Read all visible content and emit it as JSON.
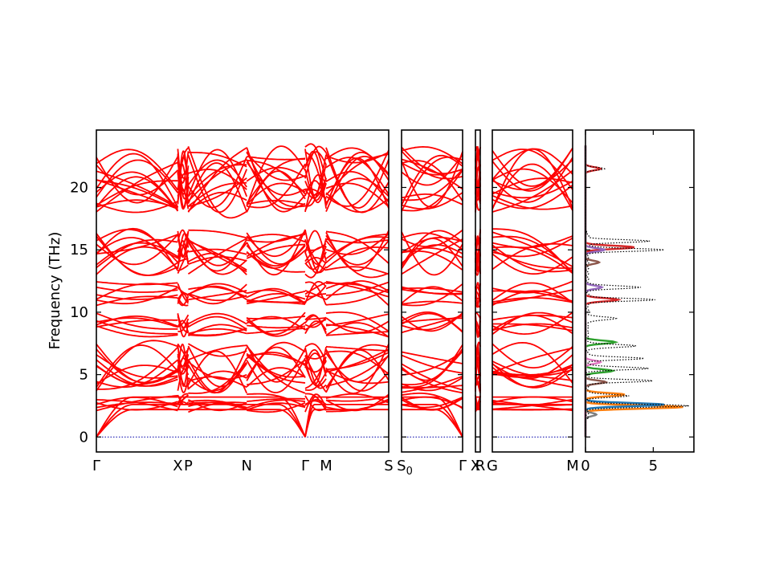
{
  "chart_data": {
    "type": "line",
    "ylabel": "Frequency (THz)",
    "ylim": [
      -1.2,
      24.6
    ],
    "yticks": [
      0,
      5,
      10,
      15,
      20
    ],
    "band_panels": [
      {
        "name": "panel-1",
        "labels": [
          "Γ",
          "X",
          "P",
          "N",
          "Γ",
          "M",
          "S"
        ],
        "label_pos": [
          0,
          0.39,
          0.44,
          0.72,
          1.0,
          1.1,
          1.4
        ]
      },
      {
        "name": "panel-2",
        "labels": [
          "S0",
          "Γ"
        ],
        "label_pos": [
          0,
          1
        ]
      },
      {
        "name": "panel-3",
        "labels": [
          "X",
          "R"
        ],
        "label_pos": [
          0,
          1
        ]
      },
      {
        "name": "panel-4",
        "labels": [
          "G",
          "M"
        ],
        "label_pos": [
          0,
          1
        ]
      }
    ],
    "band_summary": {
      "acoustic_max": [
        2.2,
        2.6,
        3.2
      ],
      "optical_groups": [
        [
          2.0,
          3.5
        ],
        [
          3.5,
          7.5
        ],
        [
          8.0,
          10.0
        ],
        [
          10.5,
          12.5
        ],
        [
          13.0,
          16.7
        ],
        [
          18.0,
          23.3
        ]
      ]
    },
    "dos": {
      "xlabel": "",
      "xlim": [
        0,
        8
      ],
      "xticks": [
        0,
        5
      ],
      "total_peaks": [
        {
          "f": 2.5,
          "d": 7.5
        },
        {
          "f": 3.3,
          "d": 3.0
        },
        {
          "f": 4.5,
          "d": 4.7
        },
        {
          "f": 5.5,
          "d": 4.5
        },
        {
          "f": 6.3,
          "d": 4.1
        },
        {
          "f": 7.3,
          "d": 3.7
        },
        {
          "f": 9.5,
          "d": 2.2
        },
        {
          "f": 11.0,
          "d": 4.9
        },
        {
          "f": 12.0,
          "d": 4.0
        },
        {
          "f": 15.0,
          "d": 5.7
        },
        {
          "f": 15.7,
          "d": 4.5
        },
        {
          "f": 21.5,
          "d": 1.4
        }
      ],
      "partial_series": [
        {
          "color": "#ff7f0e",
          "peaks": [
            {
              "f": 2.4,
              "d": 7.2
            },
            {
              "f": 3.4,
              "d": 2.9
            }
          ]
        },
        {
          "color": "#1f77b4",
          "peaks": [
            {
              "f": 2.6,
              "d": 5.8
            }
          ]
        },
        {
          "color": "#2ca02c",
          "peaks": [
            {
              "f": 5.3,
              "d": 2.0
            },
            {
              "f": 7.6,
              "d": 2.2
            }
          ]
        },
        {
          "color": "#d62728",
          "peaks": [
            {
              "f": 11.0,
              "d": 2.4
            },
            {
              "f": 15.2,
              "d": 3.6
            },
            {
              "f": 21.5,
              "d": 1.1
            }
          ]
        },
        {
          "color": "#9467bd",
          "peaks": [
            {
              "f": 12.0,
              "d": 1.2
            },
            {
              "f": 15.0,
              "d": 1.4
            }
          ]
        },
        {
          "color": "#8c564b",
          "peaks": [
            {
              "f": 4.4,
              "d": 1.5
            },
            {
              "f": 14.0,
              "d": 1.0
            }
          ]
        },
        {
          "color": "#e377c2",
          "peaks": [
            {
              "f": 6.0,
              "d": 1.1
            }
          ]
        },
        {
          "color": "#7f7f7f",
          "peaks": [
            {
              "f": 1.8,
              "d": 0.8
            }
          ]
        }
      ]
    }
  },
  "colors": {
    "bands": "#ff0000",
    "zero_line": "#0000aa",
    "dos_total": "#000000"
  }
}
